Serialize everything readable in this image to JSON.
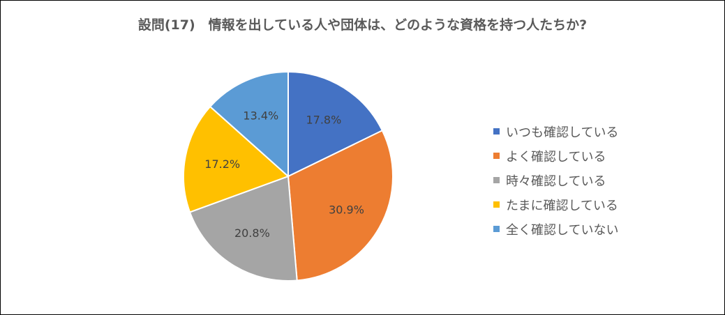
{
  "chart_data": {
    "type": "pie",
    "title": "設問(17)　情報を出している人や団体は、どのような資格を持つ人たちか?",
    "categories": [
      "いつも確認している",
      "よく確認している",
      "時々確認している",
      "たまに確認している",
      "全く確認していない"
    ],
    "values": [
      17.8,
      30.9,
      20.8,
      17.2,
      13.4
    ],
    "labels": [
      "17.8%",
      "30.9%",
      "20.8%",
      "17.2%",
      "13.4%"
    ],
    "colors": [
      "#4472C4",
      "#ED7D31",
      "#A5A5A5",
      "#FFC000",
      "#5B9BD5"
    ],
    "legend_position": "right"
  }
}
